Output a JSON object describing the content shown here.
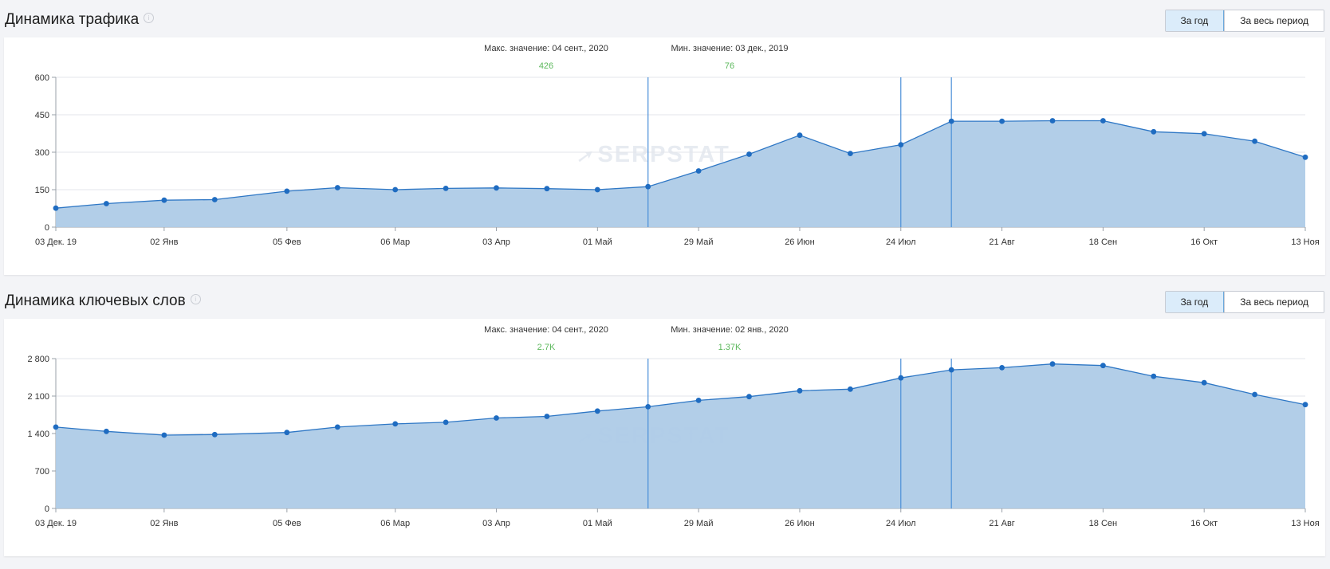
{
  "colors": {
    "area": "#aecbe7",
    "line": "#2e77c5",
    "point": "#1f6cc1",
    "grid": "#e3e6eb",
    "accent_value": "#5cb85c",
    "marker": "#4a8fd8"
  },
  "x_labels": [
    "03 Дек. 19",
    "02 Янв",
    "05 Фев",
    "06 Мар",
    "03 Апр",
    "01 Май",
    "29 Май",
    "26 Июн",
    "24 Июл",
    "21 Авг",
    "18 Сен",
    "16 Окт",
    "13 Ноя"
  ],
  "buttons": {
    "year": "За год",
    "all": "За весь период"
  },
  "info_icon": "info-icon",
  "watermark": "SERPSTAT",
  "sections": [
    {
      "title": "Динамика трафика",
      "max_label": "Макс. значение: 04 сент., 2020",
      "max_value": "426",
      "min_label": "Мин. значение: 03 дек., 2019",
      "min_value": "76"
    },
    {
      "title": "Динамика ключевых слов",
      "max_label": "Макс. значение: 04 сент., 2020",
      "max_value": "2.7K",
      "min_label": "Мин. значение: 02 янв., 2020",
      "min_value": "1.37K"
    }
  ],
  "chart_data": [
    {
      "type": "area",
      "title": "Динамика трафика",
      "x": [
        "2019-12-03",
        "2019-12-17",
        "2020-01-02",
        "2020-01-16",
        "2020-02-05",
        "2020-02-19",
        "2020-03-06",
        "2020-03-20",
        "2020-04-03",
        "2020-04-17",
        "2020-05-01",
        "2020-05-15",
        "2020-05-29",
        "2020-06-12",
        "2020-06-26",
        "2020-07-10",
        "2020-07-24",
        "2020-08-07",
        "2020-08-21",
        "2020-09-04",
        "2020-09-18",
        "2020-10-02",
        "2020-10-16",
        "2020-10-30",
        "2020-11-13"
      ],
      "values": [
        76,
        94,
        108,
        110,
        144,
        158,
        150,
        155,
        157,
        154,
        150,
        162,
        225,
        292,
        368,
        295,
        330,
        424,
        424,
        426,
        426,
        382,
        374,
        344,
        280
      ],
      "yticks": [
        "0",
        "150",
        "300",
        "450",
        "600"
      ],
      "ylim": [
        0,
        600
      ],
      "markers": [
        "2020-05-15",
        "2020-07-24",
        "2020-08-07"
      ],
      "grid": true
    },
    {
      "type": "area",
      "title": "Динамика ключевых слов",
      "x": [
        "2019-12-03",
        "2019-12-17",
        "2020-01-02",
        "2020-01-16",
        "2020-02-05",
        "2020-02-19",
        "2020-03-06",
        "2020-03-20",
        "2020-04-03",
        "2020-04-17",
        "2020-05-01",
        "2020-05-15",
        "2020-05-29",
        "2020-06-12",
        "2020-06-26",
        "2020-07-10",
        "2020-07-24",
        "2020-08-07",
        "2020-08-21",
        "2020-09-04",
        "2020-09-18",
        "2020-10-02",
        "2020-10-16",
        "2020-10-30",
        "2020-11-13"
      ],
      "values": [
        1520,
        1440,
        1370,
        1380,
        1420,
        1520,
        1580,
        1610,
        1690,
        1720,
        1820,
        1900,
        2020,
        2090,
        2200,
        2230,
        2440,
        2590,
        2630,
        2700,
        2670,
        2470,
        2350,
        2130,
        1940
      ],
      "yticks": [
        "0",
        "700",
        "1 400",
        "2 100",
        "2 800"
      ],
      "ylim": [
        0,
        2800
      ],
      "markers": [
        "2020-05-15",
        "2020-07-24",
        "2020-08-07"
      ],
      "grid": true
    }
  ]
}
